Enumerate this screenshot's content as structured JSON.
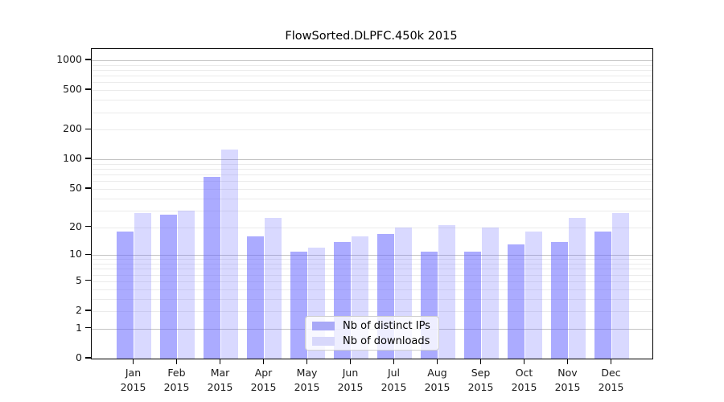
{
  "chart_data": {
    "type": "bar",
    "title": "FlowSorted.DLPFC.450k 2015",
    "categories": [
      "Jan",
      "Feb",
      "Mar",
      "Apr",
      "May",
      "Jun",
      "Jul",
      "Aug",
      "Sep",
      "Oct",
      "Nov",
      "Dec"
    ],
    "category_year": "2015",
    "series": [
      {
        "name": "Nb of distinct IPs",
        "swatch_color": "#a9a9f7",
        "fill_color": "rgba(102,102,255,0.55)",
        "values": [
          18,
          27,
          66,
          16,
          11,
          14,
          17,
          11,
          11,
          13,
          14,
          18
        ]
      },
      {
        "name": "Nb of downloads",
        "swatch_color": "#d8d8fb",
        "fill_color": "rgba(102,102,255,0.25)",
        "values": [
          28,
          30,
          125,
          25,
          12,
          16,
          20,
          21,
          20,
          18,
          25,
          28
        ]
      }
    ],
    "y_scale": "log10(1+y)",
    "y_ticks": [
      0,
      1,
      2,
      5,
      10,
      20,
      50,
      100,
      200,
      500,
      1000
    ],
    "y_minor_gridlines": [
      2,
      3,
      4,
      5,
      6,
      7,
      8,
      9,
      20,
      30,
      40,
      50,
      60,
      70,
      80,
      90,
      200,
      300,
      400,
      500,
      600,
      700,
      800,
      900
    ],
    "y_major_gridlines": [
      1,
      10,
      100,
      1000
    ],
    "ylim": [
      0,
      1300
    ],
    "xlabel": "",
    "ylabel": "",
    "grid": "horizontal",
    "legend_position": "bottom-center",
    "colors": {
      "major_grid": "#c3c3c3",
      "minor_grid": "#ebebeb",
      "axis": "#000000",
      "background": "#ffffff"
    }
  }
}
